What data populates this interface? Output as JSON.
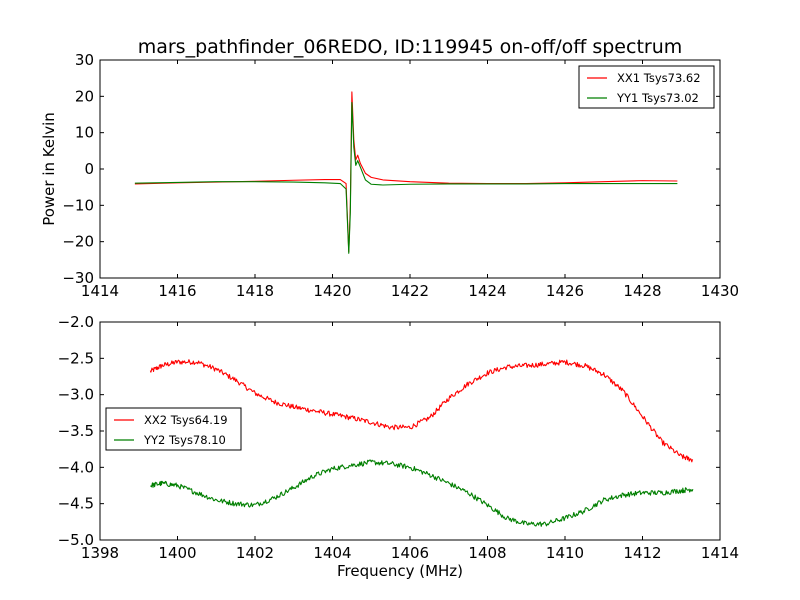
{
  "title": "mars_pathfinder_06REDO, ID:119945 on-off/off spectrum",
  "colors": {
    "red": "#ff0000",
    "green": "#007f00"
  },
  "chart_data": [
    {
      "type": "line",
      "ylabel": "Power in Kelvin",
      "xlabel": "",
      "xlim": [
        1414,
        1430
      ],
      "ylim": [
        -30,
        30
      ],
      "xticks": [
        1414,
        1416,
        1418,
        1420,
        1422,
        1424,
        1426,
        1428,
        1430
      ],
      "yticks": [
        -30,
        -20,
        -10,
        0,
        10,
        20,
        30
      ],
      "legend_position": "top-right",
      "series": [
        {
          "name": "XX1 Tsys73.62",
          "color": "#ff0000",
          "points": [
            [
              1414.9,
              -4.1
            ],
            [
              1416,
              -3.8
            ],
            [
              1417,
              -3.6
            ],
            [
              1418,
              -3.4
            ],
            [
              1419,
              -3.1
            ],
            [
              1419.8,
              -2.9
            ],
            [
              1420.2,
              -2.9
            ],
            [
              1420.35,
              -4.0
            ],
            [
              1420.42,
              -22.8
            ],
            [
              1420.46,
              -10
            ],
            [
              1420.5,
              21.2
            ],
            [
              1420.55,
              8
            ],
            [
              1420.6,
              2.5
            ],
            [
              1420.65,
              3.8
            ],
            [
              1420.72,
              1.5
            ],
            [
              1420.85,
              -1.2
            ],
            [
              1421.0,
              -2.3
            ],
            [
              1421.3,
              -3.0
            ],
            [
              1422,
              -3.5
            ],
            [
              1423,
              -3.9
            ],
            [
              1424,
              -4.0
            ],
            [
              1425,
              -4.0
            ],
            [
              1426,
              -3.8
            ],
            [
              1427,
              -3.5
            ],
            [
              1428,
              -3.2
            ],
            [
              1428.9,
              -3.3
            ]
          ]
        },
        {
          "name": "YY1 Tsys73.02",
          "color": "#007f00",
          "points": [
            [
              1414.9,
              -3.9
            ],
            [
              1416,
              -3.7
            ],
            [
              1417,
              -3.5
            ],
            [
              1418,
              -3.5
            ],
            [
              1419,
              -3.6
            ],
            [
              1419.8,
              -3.8
            ],
            [
              1420.2,
              -4.0
            ],
            [
              1420.35,
              -5.5
            ],
            [
              1420.42,
              -23.2
            ],
            [
              1420.46,
              -12
            ],
            [
              1420.5,
              18.3
            ],
            [
              1420.55,
              6
            ],
            [
              1420.6,
              1.0
            ],
            [
              1420.65,
              2.3
            ],
            [
              1420.72,
              0.5
            ],
            [
              1420.85,
              -3.0
            ],
            [
              1421.0,
              -4.2
            ],
            [
              1421.3,
              -4.4
            ],
            [
              1422,
              -4.2
            ],
            [
              1423,
              -4.1
            ],
            [
              1424,
              -4.1
            ],
            [
              1425,
              -4.1
            ],
            [
              1426,
              -4.0
            ],
            [
              1427,
              -4.0
            ],
            [
              1428,
              -4.0
            ],
            [
              1428.9,
              -4.0
            ]
          ]
        }
      ]
    },
    {
      "type": "line",
      "xlabel": "Frequency (MHz)",
      "ylabel": "",
      "xlim": [
        1398,
        1414
      ],
      "ylim": [
        -5.0,
        -2.0
      ],
      "xticks": [
        1398,
        1400,
        1402,
        1404,
        1406,
        1408,
        1410,
        1412,
        1414
      ],
      "yticks": [
        -5.0,
        -4.5,
        -4.0,
        -3.5,
        -3.0,
        -2.5,
        -2.0
      ],
      "legend_position": "center-left",
      "series": [
        {
          "name": "XX2 Tsys64.19",
          "color": "#ff0000",
          "noise": 0.035,
          "points": [
            [
              1399.3,
              -2.68
            ],
            [
              1399.6,
              -2.6
            ],
            [
              1400,
              -2.55
            ],
            [
              1400.5,
              -2.55
            ],
            [
              1401,
              -2.65
            ],
            [
              1401.5,
              -2.8
            ],
            [
              1402,
              -2.98
            ],
            [
              1402.5,
              -3.1
            ],
            [
              1403,
              -3.17
            ],
            [
              1403.5,
              -3.22
            ],
            [
              1404,
              -3.27
            ],
            [
              1404.5,
              -3.32
            ],
            [
              1405,
              -3.38
            ],
            [
              1405.5,
              -3.45
            ],
            [
              1406,
              -3.45
            ],
            [
              1406.5,
              -3.32
            ],
            [
              1407,
              -3.05
            ],
            [
              1407.5,
              -2.85
            ],
            [
              1408,
              -2.7
            ],
            [
              1408.5,
              -2.62
            ],
            [
              1409,
              -2.6
            ],
            [
              1409.5,
              -2.58
            ],
            [
              1410,
              -2.55
            ],
            [
              1410.5,
              -2.6
            ],
            [
              1411,
              -2.72
            ],
            [
              1411.5,
              -2.95
            ],
            [
              1412,
              -3.3
            ],
            [
              1412.5,
              -3.65
            ],
            [
              1413,
              -3.85
            ],
            [
              1413.3,
              -3.9
            ]
          ]
        },
        {
          "name": "YY2 Tsys78.10",
          "color": "#007f00",
          "noise": 0.035,
          "points": [
            [
              1399.3,
              -4.25
            ],
            [
              1399.6,
              -4.22
            ],
            [
              1400,
              -4.25
            ],
            [
              1400.5,
              -4.35
            ],
            [
              1401,
              -4.45
            ],
            [
              1401.5,
              -4.5
            ],
            [
              1402,
              -4.52
            ],
            [
              1402.5,
              -4.42
            ],
            [
              1403,
              -4.28
            ],
            [
              1403.5,
              -4.12
            ],
            [
              1404,
              -4.02
            ],
            [
              1404.5,
              -3.97
            ],
            [
              1405,
              -3.93
            ],
            [
              1405.5,
              -3.95
            ],
            [
              1406,
              -4.0
            ],
            [
              1406.5,
              -4.1
            ],
            [
              1407,
              -4.22
            ],
            [
              1407.5,
              -4.35
            ],
            [
              1408,
              -4.52
            ],
            [
              1408.5,
              -4.7
            ],
            [
              1409,
              -4.78
            ],
            [
              1409.5,
              -4.78
            ],
            [
              1410,
              -4.7
            ],
            [
              1410.5,
              -4.6
            ],
            [
              1411,
              -4.45
            ],
            [
              1411.5,
              -4.38
            ],
            [
              1412,
              -4.35
            ],
            [
              1412.5,
              -4.35
            ],
            [
              1413,
              -4.32
            ],
            [
              1413.3,
              -4.3
            ]
          ]
        }
      ]
    }
  ]
}
